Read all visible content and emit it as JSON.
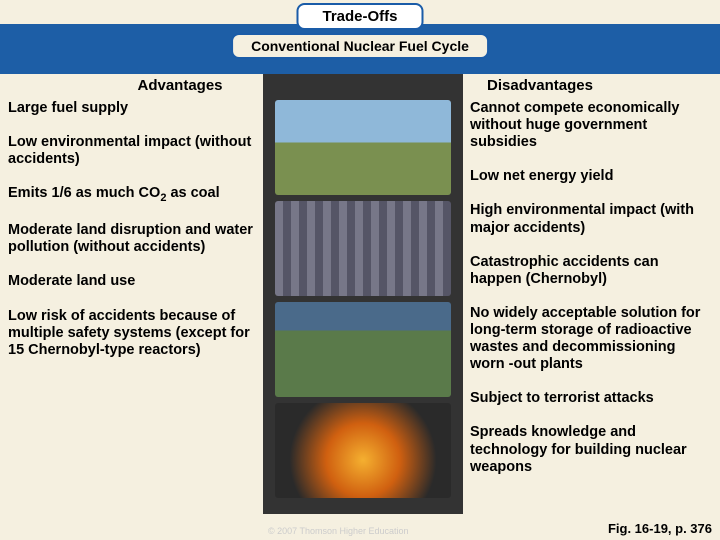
{
  "title": "Trade-Offs",
  "subtitle": "Conventional Nuclear Fuel Cycle",
  "headers": {
    "left": "Advantages",
    "right": "Disadvantages"
  },
  "advantages": [
    "Large fuel supply",
    "Low environmental impact (without accidents)",
    "Emits 1/6 as much CO₂ as coal",
    "Moderate land disruption and water pollution (without accidents)",
    "Moderate land use",
    "Low risk of accidents because of multiple safety systems (except for 15 Chernobyl-type reactors)"
  ],
  "disadvantages": [
    "Cannot compete economically without huge government subsidies",
    "Low net energy yield",
    "High environmental impact (with major accidents)",
    "Catastrophic accidents can happen (Chernobyl)",
    "No widely acceptable solution for long-term storage of radioactive wastes and decommissioning worn-out plants",
    "Subject to terrorist attacks",
    "Spreads knowledge and technology for building nuclear weapons"
  ],
  "copyright": "© 2007 Thomson Higher Education",
  "figref": "Fig. 16-19, p. 376",
  "images": {
    "backgrounds": [
      "linear-gradient(to bottom, #8fb8d9 45%, #7a9050 45%)",
      "repeating-linear-gradient(90deg, #778 0 8px, #556 8px 16px)",
      "linear-gradient(to bottom, #4a6a8a 30%, #5a7a4a 30%)",
      "radial-gradient(circle at 50% 60%, #f5b030 0%, #d06010 35%, #2a2a2a 70%)"
    ]
  },
  "colors": {
    "blue": "#1d5ea6",
    "border": "#1a5ca8",
    "bg": "#f5f0e0"
  }
}
